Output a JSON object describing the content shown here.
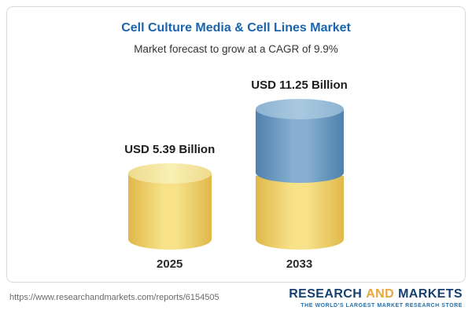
{
  "chart_data": {
    "type": "bar",
    "title": "Cell Culture Media & Cell Lines Market",
    "subtitle": "Market forecast to grow at a CAGR of 9.9%",
    "categories": [
      "2025",
      "2033"
    ],
    "values": [
      5.39,
      11.25
    ],
    "unit": "USD Billion",
    "value_labels": [
      "USD 5.39 Billion",
      "USD 11.25 Billion"
    ],
    "cagr_pct": 9.9,
    "legend": "none",
    "grid": false,
    "bar_colors": {
      "bar_2025": "#f2d066",
      "bar_2033_top": "#6f9ec4",
      "bar_2033_bottom": "#f2d066"
    },
    "accent_title_color": "#1a64ad"
  },
  "footer": {
    "url": "https://www.researchandmarkets.com/reports/6154505",
    "logo": {
      "research": "RESEARCH",
      "and": "AND",
      "markets": "MARKETS",
      "tagline": "THE WORLD'S LARGEST MARKET RESEARCH STORE"
    }
  }
}
